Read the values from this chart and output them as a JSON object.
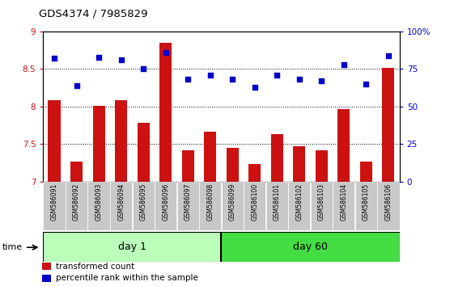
{
  "title": "GDS4374 / 7985829",
  "categories": [
    "GSM586091",
    "GSM586092",
    "GSM586093",
    "GSM586094",
    "GSM586095",
    "GSM586096",
    "GSM586097",
    "GSM586098",
    "GSM586099",
    "GSM586100",
    "GSM586101",
    "GSM586102",
    "GSM586103",
    "GSM586104",
    "GSM586105",
    "GSM586106"
  ],
  "bar_values": [
    8.08,
    7.27,
    8.01,
    8.08,
    7.78,
    8.85,
    7.42,
    7.67,
    7.45,
    7.23,
    7.63,
    7.47,
    7.42,
    7.97,
    7.27,
    8.51
  ],
  "dot_values": [
    82,
    64,
    83,
    81,
    75,
    86,
    68,
    71,
    68,
    63,
    71,
    68,
    67,
    78,
    65,
    84
  ],
  "bar_color": "#cc1111",
  "dot_color": "#0000cc",
  "ylim_left": [
    7,
    9
  ],
  "ylim_right": [
    0,
    100
  ],
  "yticks_left": [
    7,
    7.5,
    8,
    8.5,
    9
  ],
  "yticks_right": [
    0,
    25,
    50,
    75,
    100
  ],
  "ytick_labels_right": [
    "0",
    "25",
    "50",
    "75",
    "100%"
  ],
  "groups": [
    {
      "label": "day 1",
      "start": 0,
      "end": 8,
      "color": "#bbffbb"
    },
    {
      "label": "day 60",
      "start": 8,
      "end": 16,
      "color": "#44dd44"
    }
  ],
  "time_label": "time",
  "legend_items": [
    {
      "color": "#cc1111",
      "label": "transformed count"
    },
    {
      "color": "#0000cc",
      "label": "percentile rank within the sample"
    }
  ],
  "tick_label_bg": "#c8c8c8",
  "bar_width": 0.55,
  "dot_size": 20
}
